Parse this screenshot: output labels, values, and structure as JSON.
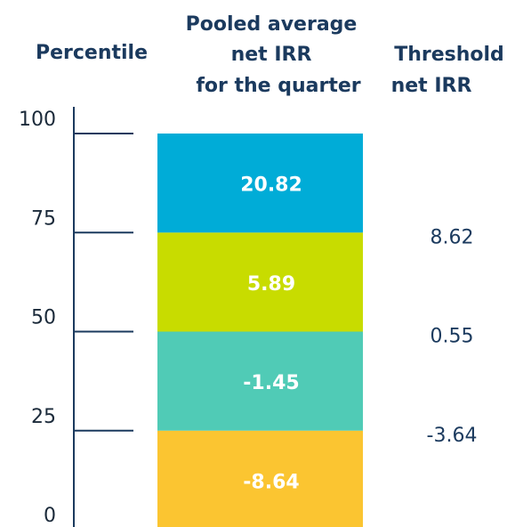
{
  "chart_data": {
    "type": "quartile",
    "percentile_title": "Percentile",
    "pooled_title": [
      "Pooled average",
      "net IRR",
      "for the quarter"
    ],
    "threshold_title": [
      "Threshold",
      "net IRR"
    ],
    "ylim": [
      0,
      100
    ],
    "yticks": [
      0,
      25,
      50,
      75,
      100
    ],
    "values": [
      -8.64,
      -1.45,
      5.89,
      20.82
    ],
    "colors": [
      "#fbc531",
      "#50cbb6",
      "#c8dc00",
      "#00acd7"
    ],
    "thresholds": [
      -3.64,
      0.55,
      8.62
    ]
  }
}
